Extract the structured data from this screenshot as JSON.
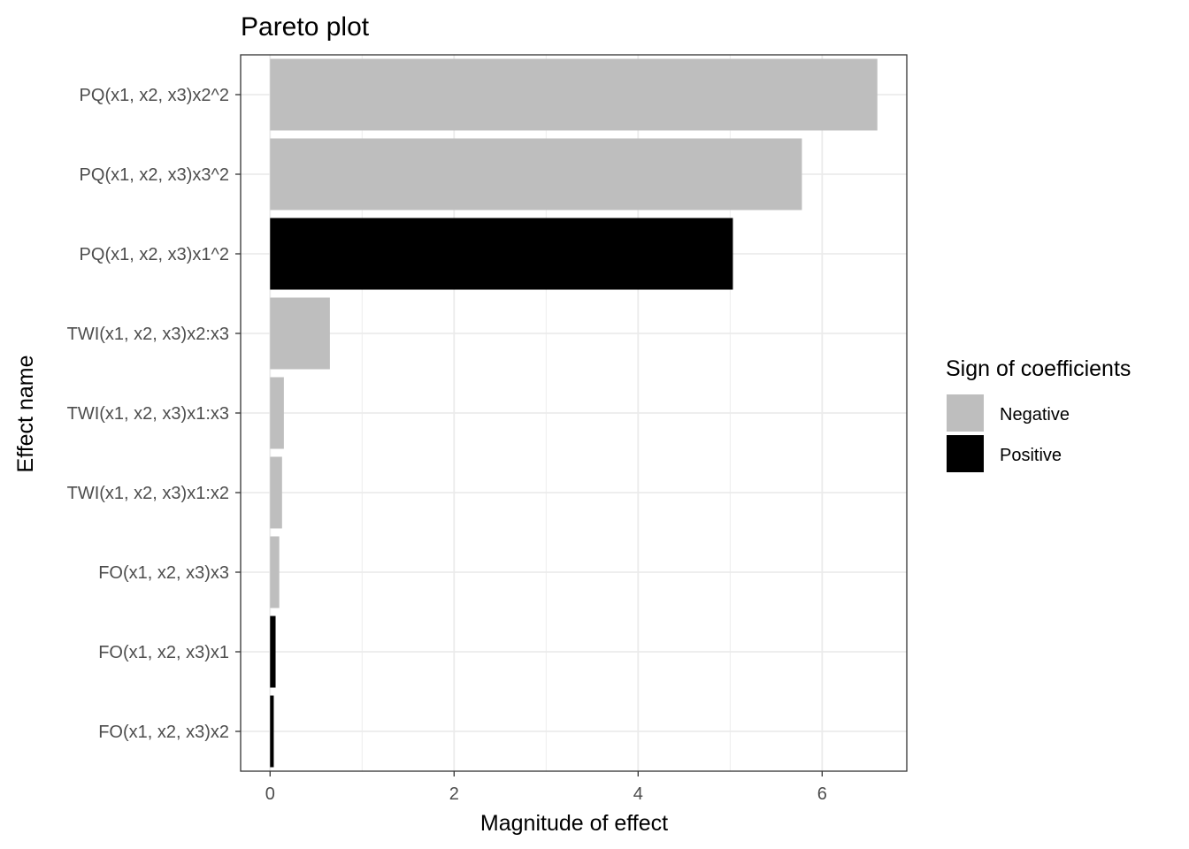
{
  "chart_data": {
    "type": "bar",
    "orientation": "horizontal",
    "title": "Pareto plot",
    "xlabel": "Magnitude of effect",
    "ylabel": "Effect name",
    "xlim": [
      -0.32,
      6.92
    ],
    "x_ticks": [
      0,
      2,
      4,
      6
    ],
    "grid": true,
    "legend": {
      "title": "Sign of coefficients",
      "position": "right",
      "entries": [
        {
          "label": "Negative",
          "color": "#bebebe"
        },
        {
          "label": "Positive",
          "color": "#000000"
        }
      ]
    },
    "categories": [
      "PQ(x1, x2, x3)x2^2",
      "PQ(x1, x2, x3)x3^2",
      "PQ(x1, x2, x3)x1^2",
      "TWI(x1, x2, x3)x2:x3",
      "TWI(x1, x2, x3)x1:x3",
      "TWI(x1, x2, x3)x1:x2",
      "FO(x1, x2, x3)x3",
      "FO(x1, x2, x3)x1",
      "FO(x1, x2, x3)x2"
    ],
    "values": [
      6.6,
      5.78,
      5.03,
      0.65,
      0.15,
      0.13,
      0.1,
      0.06,
      0.04
    ],
    "signs": [
      "Negative",
      "Negative",
      "Positive",
      "Negative",
      "Negative",
      "Negative",
      "Negative",
      "Positive",
      "Positive"
    ]
  }
}
